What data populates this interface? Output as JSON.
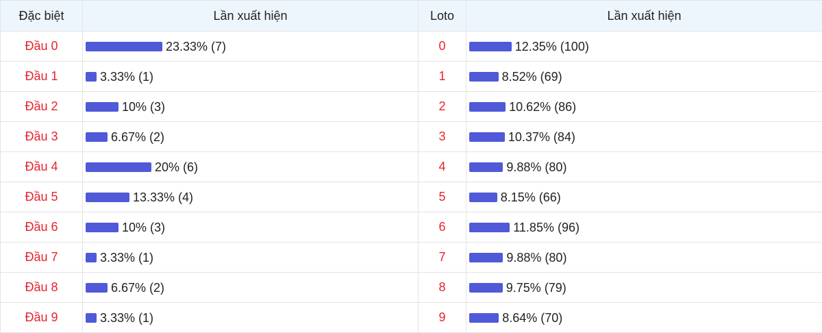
{
  "colors": {
    "bar": "#5059d8",
    "label": "#e8232e",
    "header_bg": "#eef6fd"
  },
  "headers": {
    "dac_biet": "Đặc biệt",
    "lan_xuat_hien_1": "Lần xuất hiện",
    "loto": "Loto",
    "lan_xuat_hien_2": "Lần xuất hiện"
  },
  "rows": [
    {
      "dau": "Đầu 0",
      "dac_pct": 23.33,
      "dac_text": "23.33% (7)",
      "loto": "0",
      "loto_pct": 12.35,
      "loto_text": "12.35% (100)"
    },
    {
      "dau": "Đầu 1",
      "dac_pct": 3.33,
      "dac_text": "3.33% (1)",
      "loto": "1",
      "loto_pct": 8.52,
      "loto_text": "8.52% (69)"
    },
    {
      "dau": "Đầu 2",
      "dac_pct": 10,
      "dac_text": "10% (3)",
      "loto": "2",
      "loto_pct": 10.62,
      "loto_text": "10.62% (86)"
    },
    {
      "dau": "Đầu 3",
      "dac_pct": 6.67,
      "dac_text": "6.67% (2)",
      "loto": "3",
      "loto_pct": 10.37,
      "loto_text": "10.37% (84)"
    },
    {
      "dau": "Đầu 4",
      "dac_pct": 20,
      "dac_text": "20% (6)",
      "loto": "4",
      "loto_pct": 9.88,
      "loto_text": "9.88% (80)"
    },
    {
      "dau": "Đầu 5",
      "dac_pct": 13.33,
      "dac_text": "13.33% (4)",
      "loto": "5",
      "loto_pct": 8.15,
      "loto_text": "8.15% (66)"
    },
    {
      "dau": "Đầu 6",
      "dac_pct": 10,
      "dac_text": "10% (3)",
      "loto": "6",
      "loto_pct": 11.85,
      "loto_text": "11.85% (96)"
    },
    {
      "dau": "Đầu 7",
      "dac_pct": 3.33,
      "dac_text": "3.33% (1)",
      "loto": "7",
      "loto_pct": 9.88,
      "loto_text": "9.88% (80)"
    },
    {
      "dau": "Đầu 8",
      "dac_pct": 6.67,
      "dac_text": "6.67% (2)",
      "loto": "8",
      "loto_pct": 9.75,
      "loto_text": "9.75% (79)"
    },
    {
      "dau": "Đầu 9",
      "dac_pct": 3.33,
      "dac_text": "3.33% (1)",
      "loto": "9",
      "loto_pct": 8.64,
      "loto_text": "8.64% (70)"
    }
  ]
}
